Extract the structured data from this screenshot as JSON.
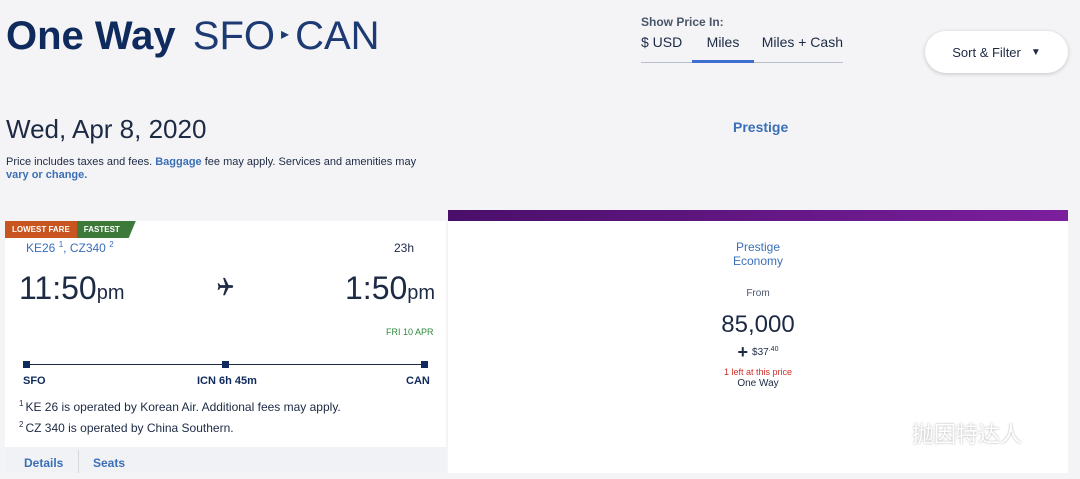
{
  "header": {
    "title_strong": "One Way",
    "origin": "SFO",
    "separator": "▸",
    "destination": "CAN",
    "show_price_label": "Show Price In:",
    "price_tabs": [
      {
        "label": "$ USD",
        "selected": false
      },
      {
        "label": "Miles",
        "selected": true
      },
      {
        "label": "Miles + Cash",
        "selected": false
      }
    ],
    "sort_filter_label": "Sort & Filter",
    "sort_caret": "▼"
  },
  "date": "Wed, Apr 8, 2020",
  "cabin_header": "Prestige",
  "notice": {
    "part1": "Price includes taxes and fees. ",
    "baggage_link": "Baggage",
    "part2": " fee may apply. Services and amenities may ",
    "vary_link": "vary or change."
  },
  "flight": {
    "badges": [
      "LOWEST FARE",
      "FASTEST"
    ],
    "flight1": "KE26",
    "flight1_ref": "1",
    "flight2": "CZ340",
    "flight2_ref": "2",
    "duration": "23h",
    "depart_time": "11:50",
    "depart_ampm": "pm",
    "arrive_time": "1:50",
    "arrive_ampm": "pm",
    "arrival_date": "FRI 10 APR",
    "stops": [
      {
        "code": "SFO"
      },
      {
        "code": "ICN 6h 45m"
      },
      {
        "code": "CAN"
      }
    ],
    "footnotes": [
      {
        "ref": "1",
        "text": "KE 26 is operated by Korean Air. Additional fees may apply."
      },
      {
        "ref": "2",
        "text": "CZ 340 is operated by China Southern."
      }
    ],
    "details_label": "Details",
    "seats_label": "Seats"
  },
  "fare": {
    "class_line1": "Prestige",
    "class_line2": "Economy",
    "from_label": "From",
    "miles": "85,000",
    "plus": "+",
    "cash": "$37",
    "cash_cents": ".40",
    "seats_left": "1 left at this price",
    "trip_type": "One Way",
    "accent_color": "#6a1b8a"
  },
  "watermark": {
    "text": "抛因特达人",
    "icon": "wechat-icon"
  }
}
